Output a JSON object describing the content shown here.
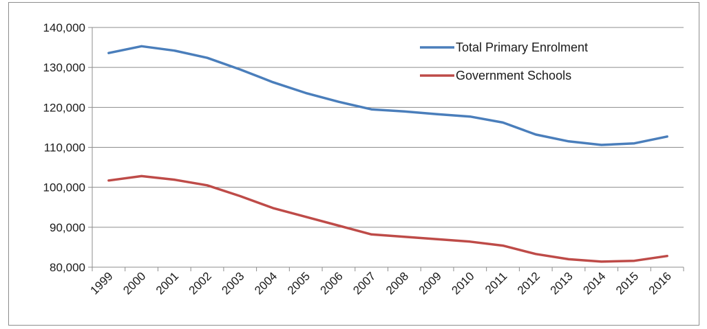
{
  "chart_data": {
    "type": "line",
    "title": "",
    "xlabel": "",
    "ylabel": "",
    "x": [
      "1999",
      "2000",
      "2001",
      "2002",
      "2003",
      "2004",
      "2005",
      "2006",
      "2007",
      "2008",
      "2009",
      "2010",
      "2011",
      "2012",
      "2013",
      "2014",
      "2015",
      "2016"
    ],
    "ylim": [
      80000,
      140000
    ],
    "yticks": [
      80000,
      90000,
      100000,
      110000,
      120000,
      130000,
      140000
    ],
    "ytick_labels": [
      "80,000",
      "90,000",
      "100,000",
      "110,000",
      "120,000",
      "130,000",
      "140,000"
    ],
    "grid": true,
    "legend_position": "top-right",
    "series": [
      {
        "name": "Total Primary Enrolment",
        "color": "#4a7ebb",
        "values": [
          133600,
          135300,
          134200,
          132400,
          129500,
          126300,
          123600,
          121400,
          119500,
          119000,
          118300,
          117700,
          116200,
          113200,
          111500,
          110600,
          111000,
          112700
        ]
      },
      {
        "name": "Government Schools",
        "color": "#be4b48",
        "values": [
          101700,
          102800,
          101900,
          100500,
          97800,
          94800,
          92600,
          90400,
          88200,
          87600,
          87000,
          86400,
          85400,
          83300,
          82000,
          81400,
          81600,
          82800
        ]
      }
    ]
  }
}
